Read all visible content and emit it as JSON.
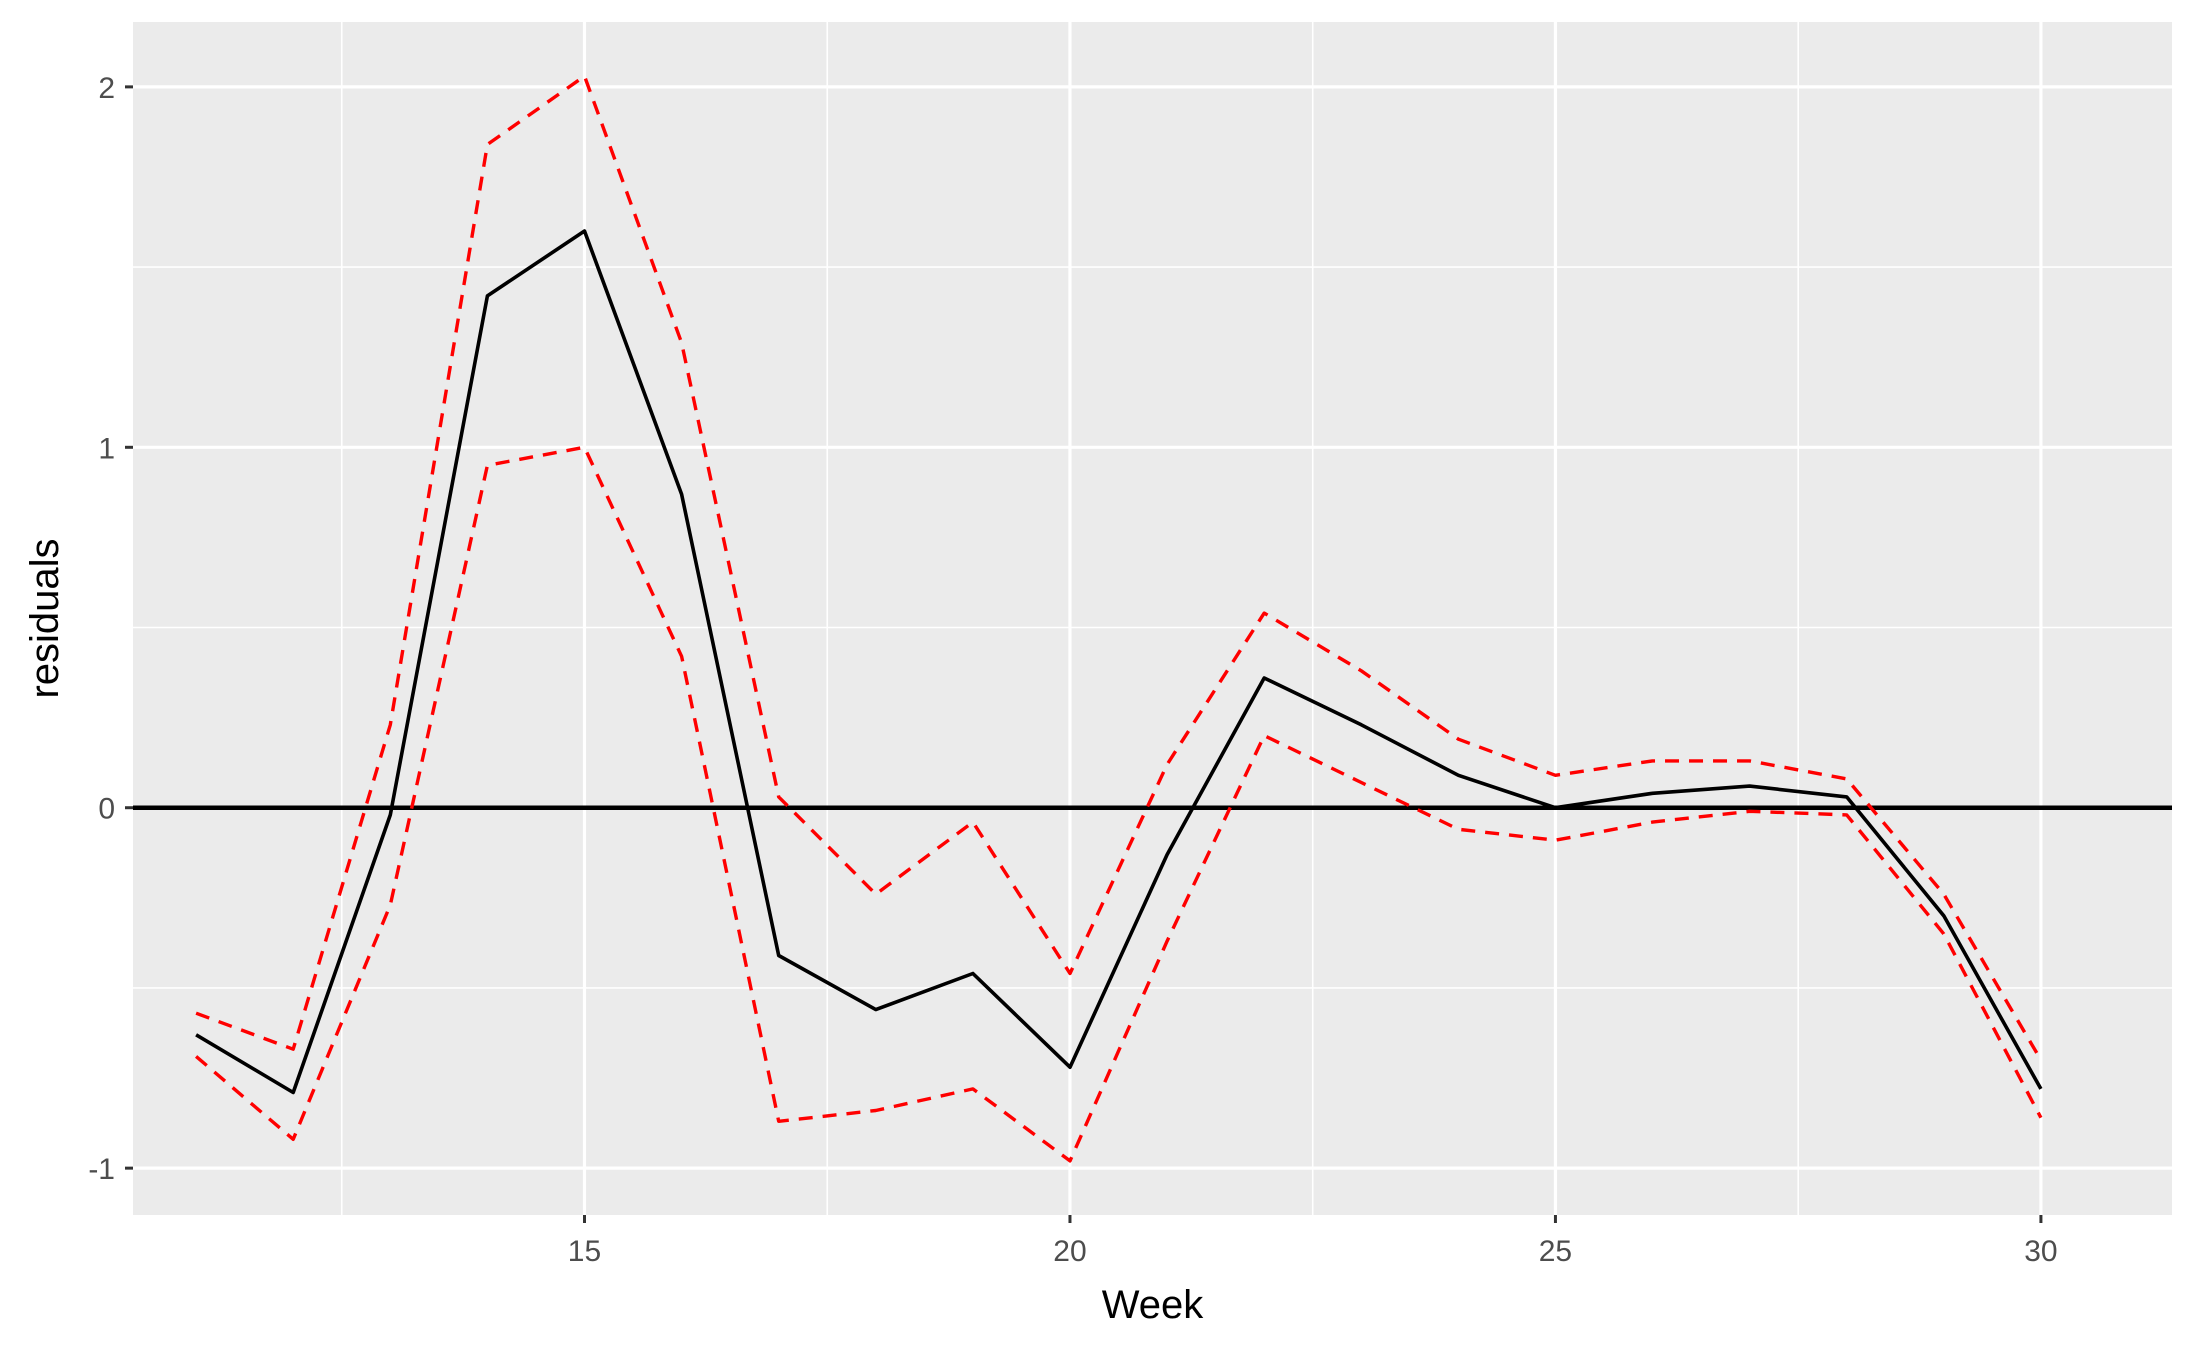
{
  "chart_data": {
    "type": "line",
    "title": "",
    "xlabel": "Week",
    "ylabel": "residuals",
    "xlim": [
      10.35,
      31.35
    ],
    "ylim": [
      -1.13,
      2.18
    ],
    "xticks": [
      15,
      20,
      25,
      30
    ],
    "xtick_labels": [
      "15",
      "20",
      "25",
      "30"
    ],
    "yticks": [
      -1,
      0,
      1,
      2
    ],
    "ytick_labels": [
      "-1",
      "0",
      "1",
      "2"
    ],
    "grid": true,
    "reference_line": {
      "y": 0,
      "color": "#000000"
    },
    "colors": {
      "panel": "#ebebeb",
      "grid": "#ffffff",
      "residuals": "#000000",
      "bounds": "#ff0000"
    },
    "series": [
      {
        "role": "residuals",
        "style": "solid",
        "color": "#000000",
        "x": [
          11,
          12,
          13,
          14,
          15,
          16,
          17,
          18,
          19,
          20,
          21,
          22,
          23,
          24,
          25,
          26,
          27,
          28,
          29,
          30
        ],
        "values": [
          -0.63,
          -0.79,
          -0.02,
          1.42,
          1.6,
          0.87,
          -0.41,
          -0.56,
          -0.46,
          -0.72,
          -0.13,
          0.36,
          0.23,
          0.09,
          0.0,
          0.04,
          0.06,
          0.03,
          -0.3,
          -0.78
        ]
      },
      {
        "role": "upper-bound",
        "style": "dashed",
        "color": "#ff0000",
        "x": [
          11,
          12,
          13,
          14,
          15,
          16,
          17,
          18,
          19,
          20,
          21,
          22,
          23,
          24,
          25,
          26,
          27,
          28,
          29,
          30
        ],
        "values": [
          -0.57,
          -0.67,
          0.23,
          1.84,
          2.03,
          1.29,
          0.03,
          -0.24,
          -0.04,
          -0.46,
          0.12,
          0.54,
          0.38,
          0.19,
          0.09,
          0.13,
          0.13,
          0.08,
          -0.24,
          -0.7
        ]
      },
      {
        "role": "lower-bound",
        "style": "dashed",
        "color": "#ff0000",
        "x": [
          11,
          12,
          13,
          14,
          15,
          16,
          17,
          18,
          19,
          20,
          21,
          22,
          23,
          24,
          25,
          26,
          27,
          28,
          29,
          30
        ],
        "values": [
          -0.69,
          -0.92,
          -0.27,
          0.95,
          1.0,
          0.42,
          -0.87,
          -0.84,
          -0.78,
          -0.98,
          -0.37,
          0.2,
          0.07,
          -0.06,
          -0.09,
          -0.04,
          -0.01,
          -0.02,
          -0.35,
          -0.86
        ]
      }
    ]
  }
}
